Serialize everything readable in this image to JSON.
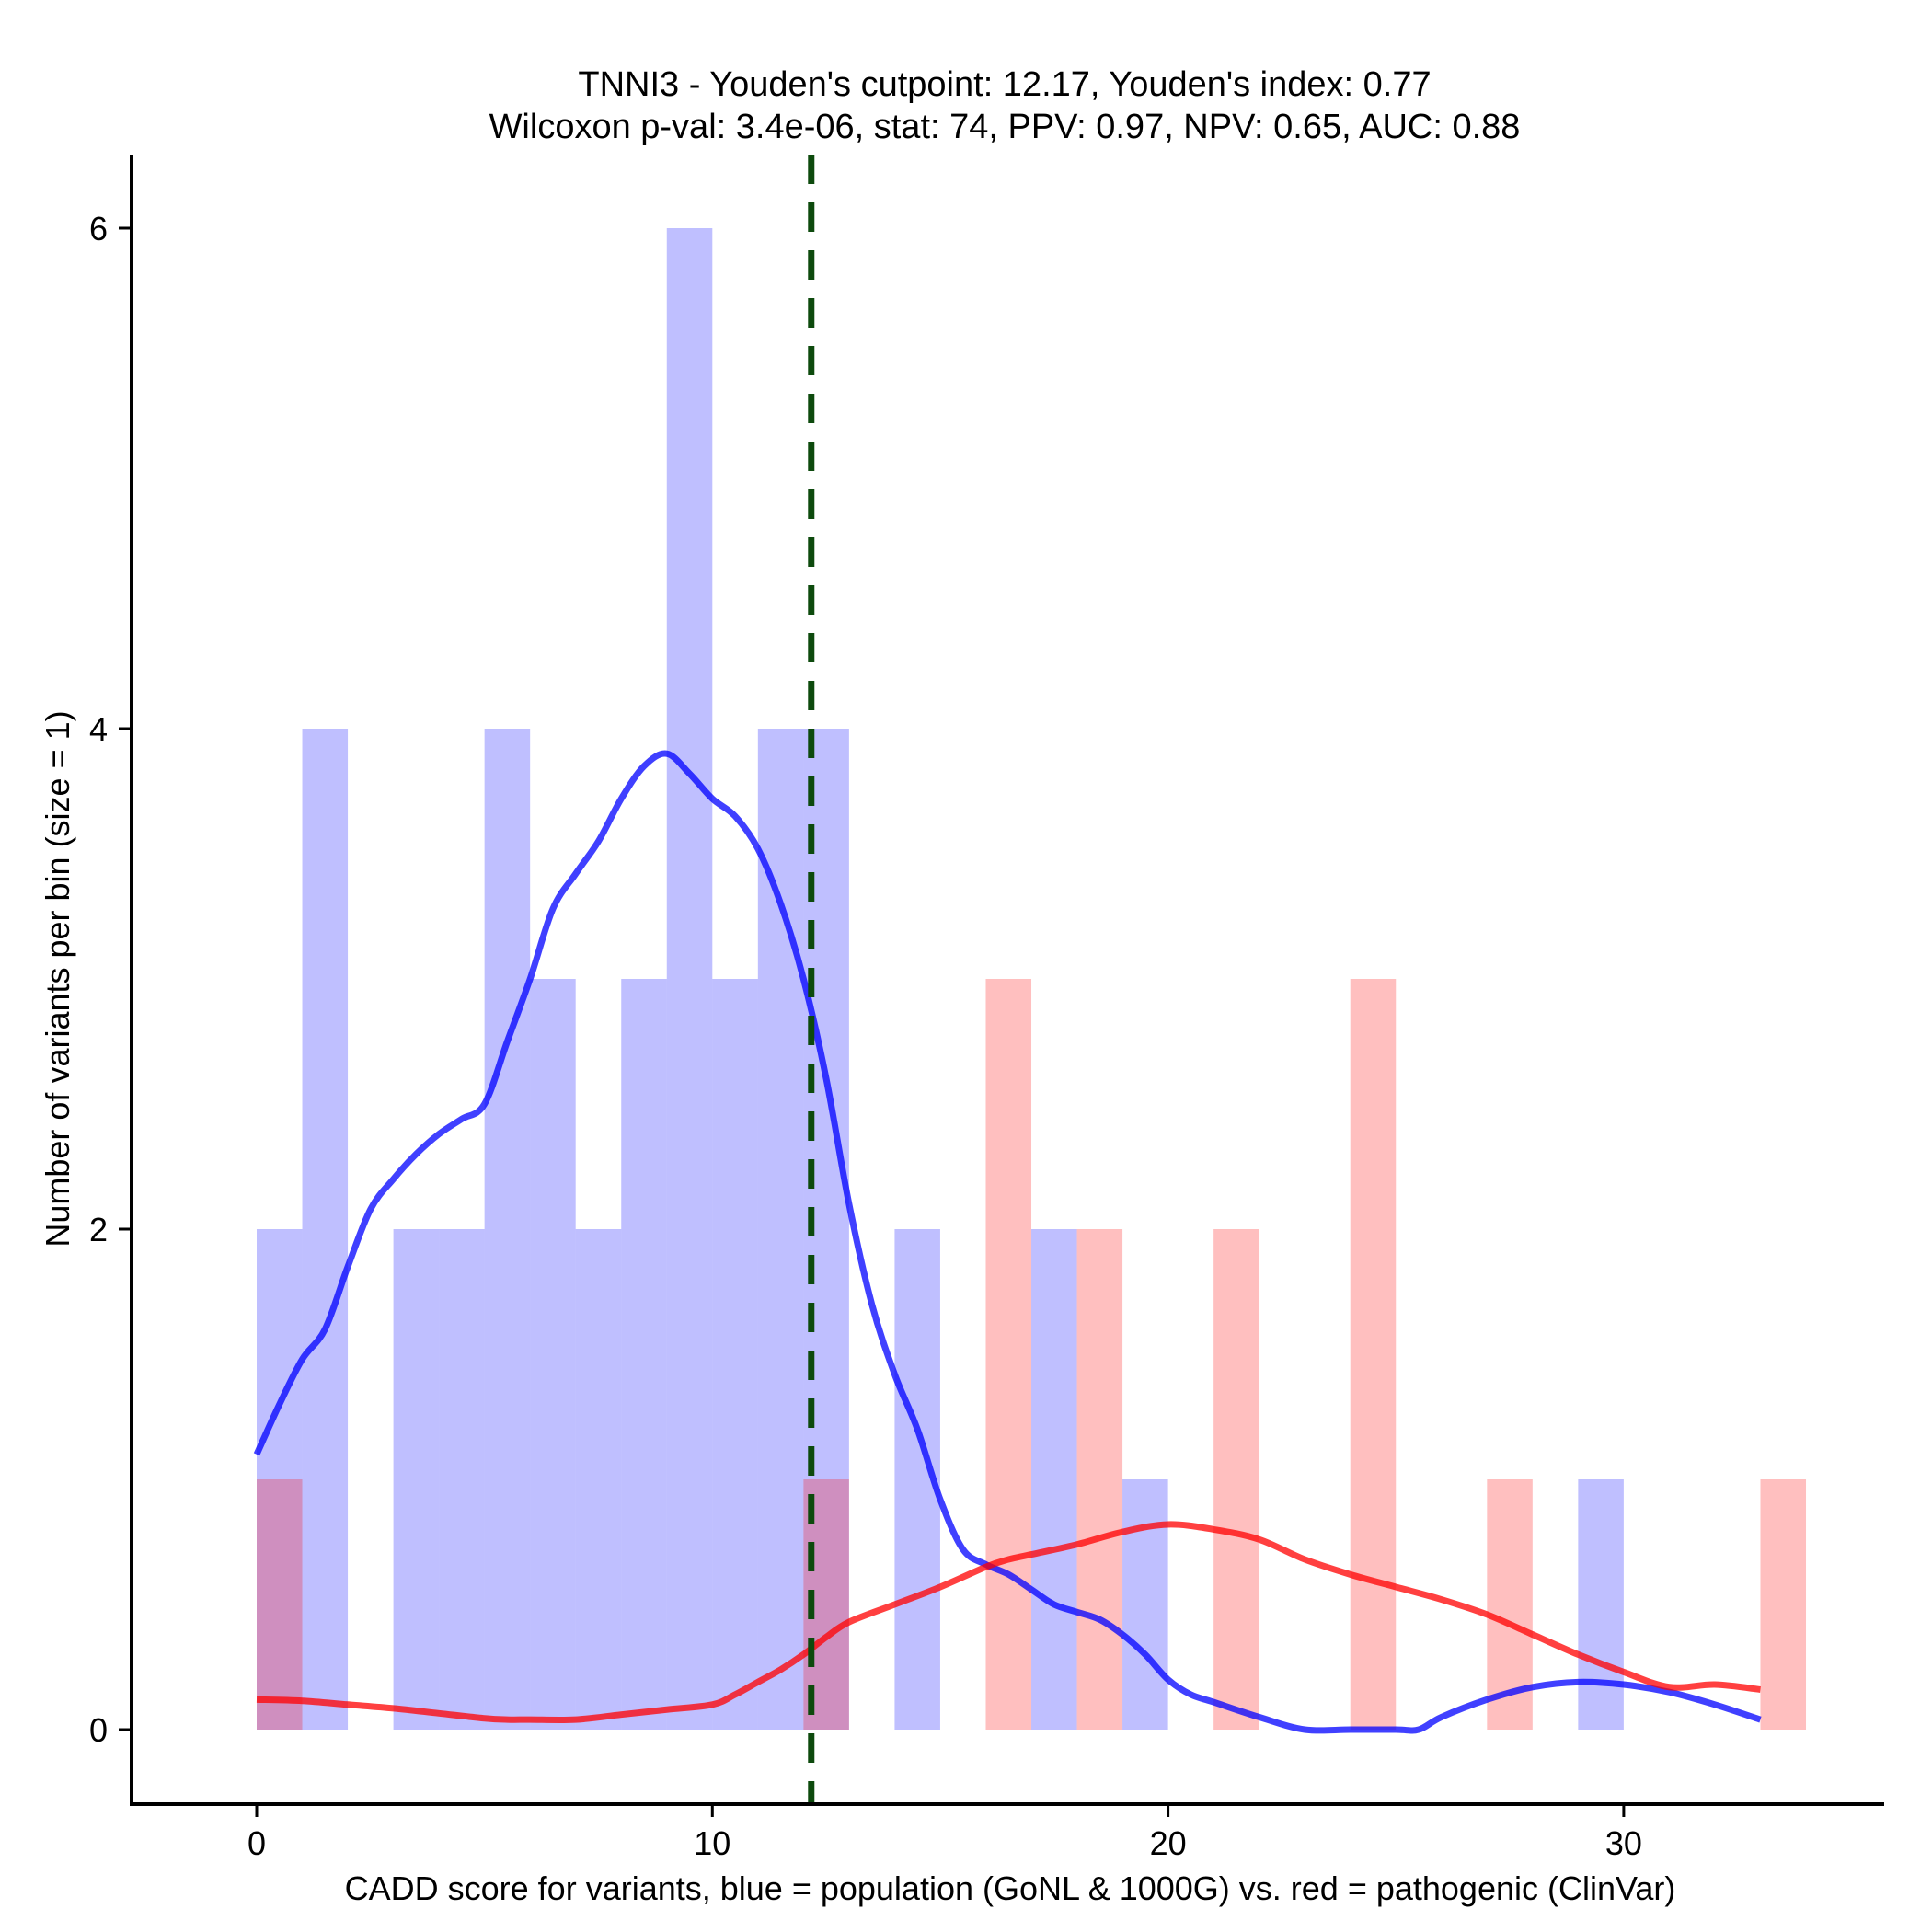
{
  "chart_data": {
    "type": "bar",
    "subtype": "histogram-with-density",
    "title": "TNNI3 - Youden's cutpoint: 12.17, Youden's index: 0.77",
    "subtitle": "Wilcoxon p-val: 3.4e-06, stat: 74, PPV: 0.97, NPV: 0.65, AUC: 0.88",
    "xlabel": "CADD score for variants, blue = population (GoNL & 1000G) vs. red = pathogenic (ClinVar)",
    "ylabel": "Number of variants per bin (size = 1)",
    "xlim": [
      -2.8,
      35.3
    ],
    "ylim": [
      -0.3,
      6.3
    ],
    "x_ticks": [
      0,
      10,
      20,
      30
    ],
    "y_ticks": [
      0,
      2,
      4,
      6
    ],
    "grid": false,
    "bin_width": 1,
    "cutpoint": 12.17,
    "series": [
      {
        "name": "population (GoNL & 1000G)",
        "color": "#0000ff",
        "fill_color": "#bfbffc",
        "bins": [
          {
            "start": 0,
            "count": 2
          },
          {
            "start": 1,
            "count": 4
          },
          {
            "start": 3,
            "count": 2
          },
          {
            "start": 4,
            "count": 2
          },
          {
            "start": 5,
            "count": 4
          },
          {
            "start": 6,
            "count": 3
          },
          {
            "start": 7,
            "count": 2
          },
          {
            "start": 8,
            "count": 3
          },
          {
            "start": 9,
            "count": 6
          },
          {
            "start": 10,
            "count": 3
          },
          {
            "start": 11,
            "count": 4
          },
          {
            "start": 12,
            "count": 4
          },
          {
            "start": 14,
            "count": 2
          },
          {
            "start": 17,
            "count": 2
          },
          {
            "start": 19,
            "count": 1
          },
          {
            "start": 29,
            "count": 1
          }
        ],
        "density": [
          [
            0,
            1.1
          ],
          [
            0.5,
            1.3
          ],
          [
            1,
            1.48
          ],
          [
            1.5,
            1.6
          ],
          [
            2,
            1.85
          ],
          [
            2.5,
            2.08
          ],
          [
            3,
            2.2
          ],
          [
            3.5,
            2.3
          ],
          [
            4,
            2.38
          ],
          [
            4.5,
            2.44
          ],
          [
            5,
            2.5
          ],
          [
            5.5,
            2.75
          ],
          [
            6,
            3.0
          ],
          [
            6.5,
            3.28
          ],
          [
            7,
            3.42
          ],
          [
            7.5,
            3.55
          ],
          [
            8,
            3.72
          ],
          [
            8.5,
            3.85
          ],
          [
            9,
            3.9
          ],
          [
            9.5,
            3.82
          ],
          [
            10,
            3.72
          ],
          [
            10.5,
            3.65
          ],
          [
            11,
            3.52
          ],
          [
            11.5,
            3.3
          ],
          [
            12,
            3.0
          ],
          [
            12.5,
            2.6
          ],
          [
            13,
            2.1
          ],
          [
            13.5,
            1.7
          ],
          [
            14,
            1.42
          ],
          [
            14.5,
            1.2
          ],
          [
            15,
            0.92
          ],
          [
            15.5,
            0.72
          ],
          [
            16,
            0.66
          ],
          [
            16.5,
            0.62
          ],
          [
            17,
            0.56
          ],
          [
            17.5,
            0.5
          ],
          [
            18,
            0.47
          ],
          [
            18.5,
            0.44
          ],
          [
            19,
            0.38
          ],
          [
            19.5,
            0.3
          ],
          [
            20,
            0.2
          ],
          [
            20.5,
            0.14
          ],
          [
            21,
            0.11
          ],
          [
            22,
            0.05
          ],
          [
            23,
            0.0
          ],
          [
            24,
            0.0
          ],
          [
            25,
            0.0
          ],
          [
            25.5,
            0.0
          ],
          [
            26,
            0.05
          ],
          [
            27,
            0.12
          ],
          [
            28,
            0.17
          ],
          [
            29,
            0.19
          ],
          [
            30,
            0.18
          ],
          [
            31,
            0.15
          ],
          [
            32,
            0.1
          ],
          [
            33,
            0.04
          ]
        ]
      },
      {
        "name": "pathogenic (ClinVar)",
        "color": "#ff0000",
        "fill_color": "#fcbfc2",
        "bins": [
          {
            "start": 0,
            "count": 1
          },
          {
            "start": 12,
            "count": 1
          },
          {
            "start": 16,
            "count": 3
          },
          {
            "start": 18,
            "count": 2
          },
          {
            "start": 21,
            "count": 2
          },
          {
            "start": 24,
            "count": 3
          },
          {
            "start": 27,
            "count": 1
          },
          {
            "start": 33,
            "count": 1
          }
        ],
        "density": [
          [
            0,
            0.12
          ],
          [
            1,
            0.115
          ],
          [
            2,
            0.1
          ],
          [
            3,
            0.085
          ],
          [
            4,
            0.065
          ],
          [
            5,
            0.045
          ],
          [
            5.5,
            0.04
          ],
          [
            6,
            0.04
          ],
          [
            7,
            0.04
          ],
          [
            8,
            0.06
          ],
          [
            9,
            0.08
          ],
          [
            10,
            0.1
          ],
          [
            10.5,
            0.14
          ],
          [
            11,
            0.19
          ],
          [
            11.5,
            0.24
          ],
          [
            12,
            0.3
          ],
          [
            12.5,
            0.37
          ],
          [
            13,
            0.43
          ],
          [
            14,
            0.5
          ],
          [
            15,
            0.57
          ],
          [
            16,
            0.65
          ],
          [
            16.5,
            0.68
          ],
          [
            17,
            0.7
          ],
          [
            18,
            0.74
          ],
          [
            19,
            0.79
          ],
          [
            20,
            0.82
          ],
          [
            21,
            0.8
          ],
          [
            22,
            0.76
          ],
          [
            23,
            0.68
          ],
          [
            24,
            0.62
          ],
          [
            25,
            0.57
          ],
          [
            26,
            0.52
          ],
          [
            27,
            0.46
          ],
          [
            28,
            0.38
          ],
          [
            29,
            0.3
          ],
          [
            30,
            0.23
          ],
          [
            31,
            0.17
          ],
          [
            32,
            0.18
          ],
          [
            33,
            0.16
          ]
        ]
      }
    ],
    "cutpoint_line": {
      "x": 12.17,
      "color": "#0d4a0d",
      "style": "dashed"
    }
  }
}
